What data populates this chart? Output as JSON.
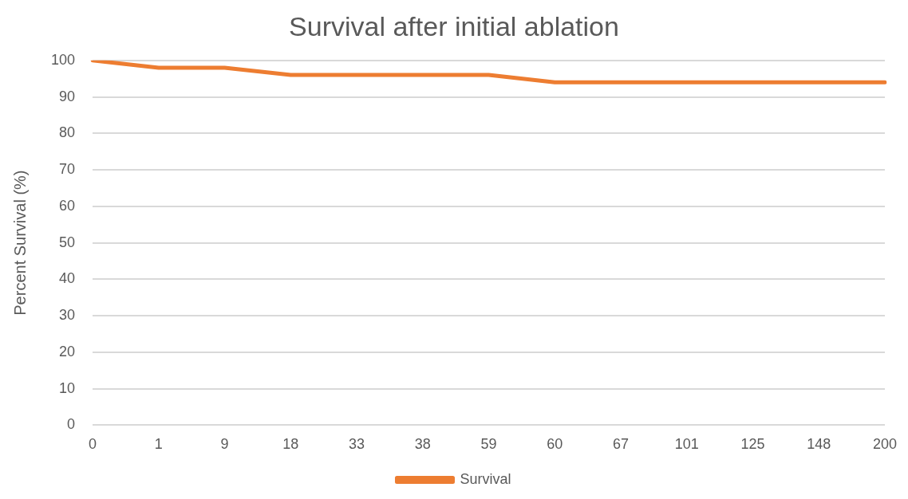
{
  "chart_data": {
    "type": "line",
    "title": "Survival after initial ablation",
    "ylabel": "Percent Survival (%)",
    "categories": [
      "0",
      "1",
      "9",
      "18",
      "33",
      "38",
      "59",
      "60",
      "67",
      "101",
      "125",
      "148",
      "200"
    ],
    "series": [
      {
        "name": "Survival",
        "color": "#ed7d31",
        "values": [
          100,
          98,
          98,
          96,
          96,
          96,
          96,
          94,
          94,
          94,
          94,
          94,
          94
        ]
      }
    ],
    "ylim": [
      0,
      100
    ],
    "yticks": [
      0,
      10,
      20,
      30,
      40,
      50,
      60,
      70,
      80,
      90,
      100
    ],
    "grid": "y",
    "legend": "bottom",
    "marker": "none",
    "line_style": "solid"
  }
}
